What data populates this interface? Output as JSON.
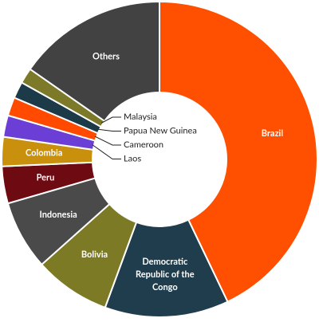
{
  "chart_data": {
    "type": "donut",
    "categories": [
      "Brazil",
      "Democratic Republic of the Congo",
      "Bolivia",
      "Indonesia",
      "Peru",
      "Colombia",
      "Laos",
      "Cameroon",
      "Papua New Guinea",
      "Malaysia",
      "Others"
    ],
    "values": [
      42.9,
      12.7,
      7.8,
      7.1,
      3.8,
      3.0,
      2.2,
      1.9,
      1.7,
      1.6,
      15.3
    ],
    "colors": [
      "#ff4f00",
      "#1f3d4c",
      "#7d7a26",
      "#4a4a4a",
      "#6e0a12",
      "#c8900c",
      "#6b3fd6",
      "#ff4a00",
      "#1d3a48",
      "#7c7a28",
      "#424242"
    ]
  }
}
